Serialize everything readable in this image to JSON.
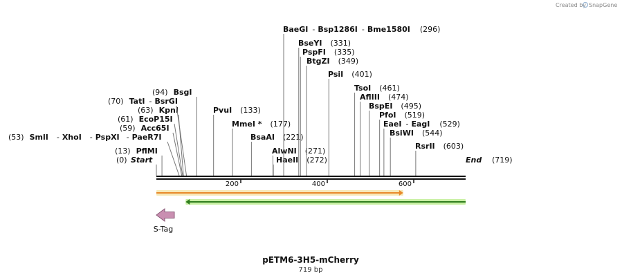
{
  "credit": {
    "created_by": "Created by",
    "brand": "SnapGene"
  },
  "map": {
    "name": "pETM6-3H5-mCherry",
    "length_label": "719 bp",
    "length": 719,
    "ticks": [
      "200",
      "400",
      "600"
    ],
    "ends": {
      "start": "Start",
      "start_pos": "(0)",
      "end": "End",
      "end_pos": "(719)"
    }
  },
  "sites": [
    {
      "id": "baegi",
      "names": [
        "BaeGI",
        "-",
        "Bsp1286I",
        "-",
        "Bme1580I"
      ],
      "pos": "(296)",
      "bp": 296
    },
    {
      "id": "bseyi",
      "names": [
        "BseYI"
      ],
      "pos": "(331)",
      "bp": 331
    },
    {
      "id": "pspfi",
      "names": [
        "PspFI"
      ],
      "pos": "(335)",
      "bp": 335
    },
    {
      "id": "btgzi",
      "names": [
        "BtgZI"
      ],
      "pos": "(349)",
      "bp": 349
    },
    {
      "id": "psii",
      "names": [
        "PsiI"
      ],
      "pos": "(401)",
      "bp": 401
    },
    {
      "id": "tsoi",
      "names": [
        "TsoI"
      ],
      "pos": "(461)",
      "bp": 461
    },
    {
      "id": "afliii",
      "names": [
        "AflIII"
      ],
      "pos": "(474)",
      "bp": 474
    },
    {
      "id": "bspei",
      "names": [
        "BspEI"
      ],
      "pos": "(495)",
      "bp": 495
    },
    {
      "id": "pfoi",
      "names": [
        "PfoI"
      ],
      "pos": "(519)",
      "bp": 519
    },
    {
      "id": "eaei",
      "names": [
        "EaeI",
        "-",
        "EagI"
      ],
      "pos": "(529)",
      "bp": 529
    },
    {
      "id": "bsiwi",
      "names": [
        "BsiWI"
      ],
      "pos": "(544)",
      "bp": 544
    },
    {
      "id": "rsrii",
      "names": [
        "RsrII"
      ],
      "pos": "(603)",
      "bp": 603
    },
    {
      "id": "bsgi",
      "names": [
        "BsgI"
      ],
      "pos": "(94)",
      "bp": 94
    },
    {
      "id": "tati",
      "names": [
        "TatI",
        "-",
        "BsrGI"
      ],
      "pos": "(70)",
      "bp": 70
    },
    {
      "id": "kpni",
      "names": [
        "KpnI"
      ],
      "pos": "(63)",
      "bp": 63
    },
    {
      "id": "ecop15i",
      "names": [
        "EcoP15I"
      ],
      "pos": "(61)",
      "bp": 61
    },
    {
      "id": "acc65i",
      "names": [
        "Acc65I"
      ],
      "pos": "(59)",
      "bp": 59
    },
    {
      "id": "smli",
      "names": [
        "SmlI",
        "-",
        "XhoI",
        "-",
        "PspXI",
        "-",
        "PaeR7I"
      ],
      "pos": "(53)",
      "bp": 53
    },
    {
      "id": "pflmi",
      "names": [
        "PflMI"
      ],
      "pos": "(13)",
      "bp": 13
    },
    {
      "id": "pvui",
      "names": [
        "PvuI"
      ],
      "pos": "(133)",
      "bp": 133
    },
    {
      "id": "mmei",
      "names": [
        "MmeI *"
      ],
      "pos": "(177)",
      "bp": 177
    },
    {
      "id": "bsaai",
      "names": [
        "BsaAI"
      ],
      "pos": "(221)",
      "bp": 221
    },
    {
      "id": "alwni",
      "names": [
        "AlwNI"
      ],
      "pos": "(271)",
      "bp": 271
    },
    {
      "id": "haeii",
      "names": [
        "HaeII"
      ],
      "pos": "(272)",
      "bp": 272
    }
  ],
  "features": [
    {
      "id": "orange",
      "from_bp": 0,
      "to_bp": 574,
      "color": "#e8892a",
      "fill": "#f7e9b8"
    },
    {
      "id": "green",
      "from_bp": 68,
      "to_bp": 719,
      "color": "#2f7d1e",
      "fill": "#c9f0a4"
    },
    {
      "id": "stag",
      "name": "S-Tag",
      "from_bp": 0,
      "to_bp": 45,
      "color": "#c98fb1"
    }
  ],
  "colors": {
    "backbone": "#111111",
    "leader": "#777777"
  }
}
